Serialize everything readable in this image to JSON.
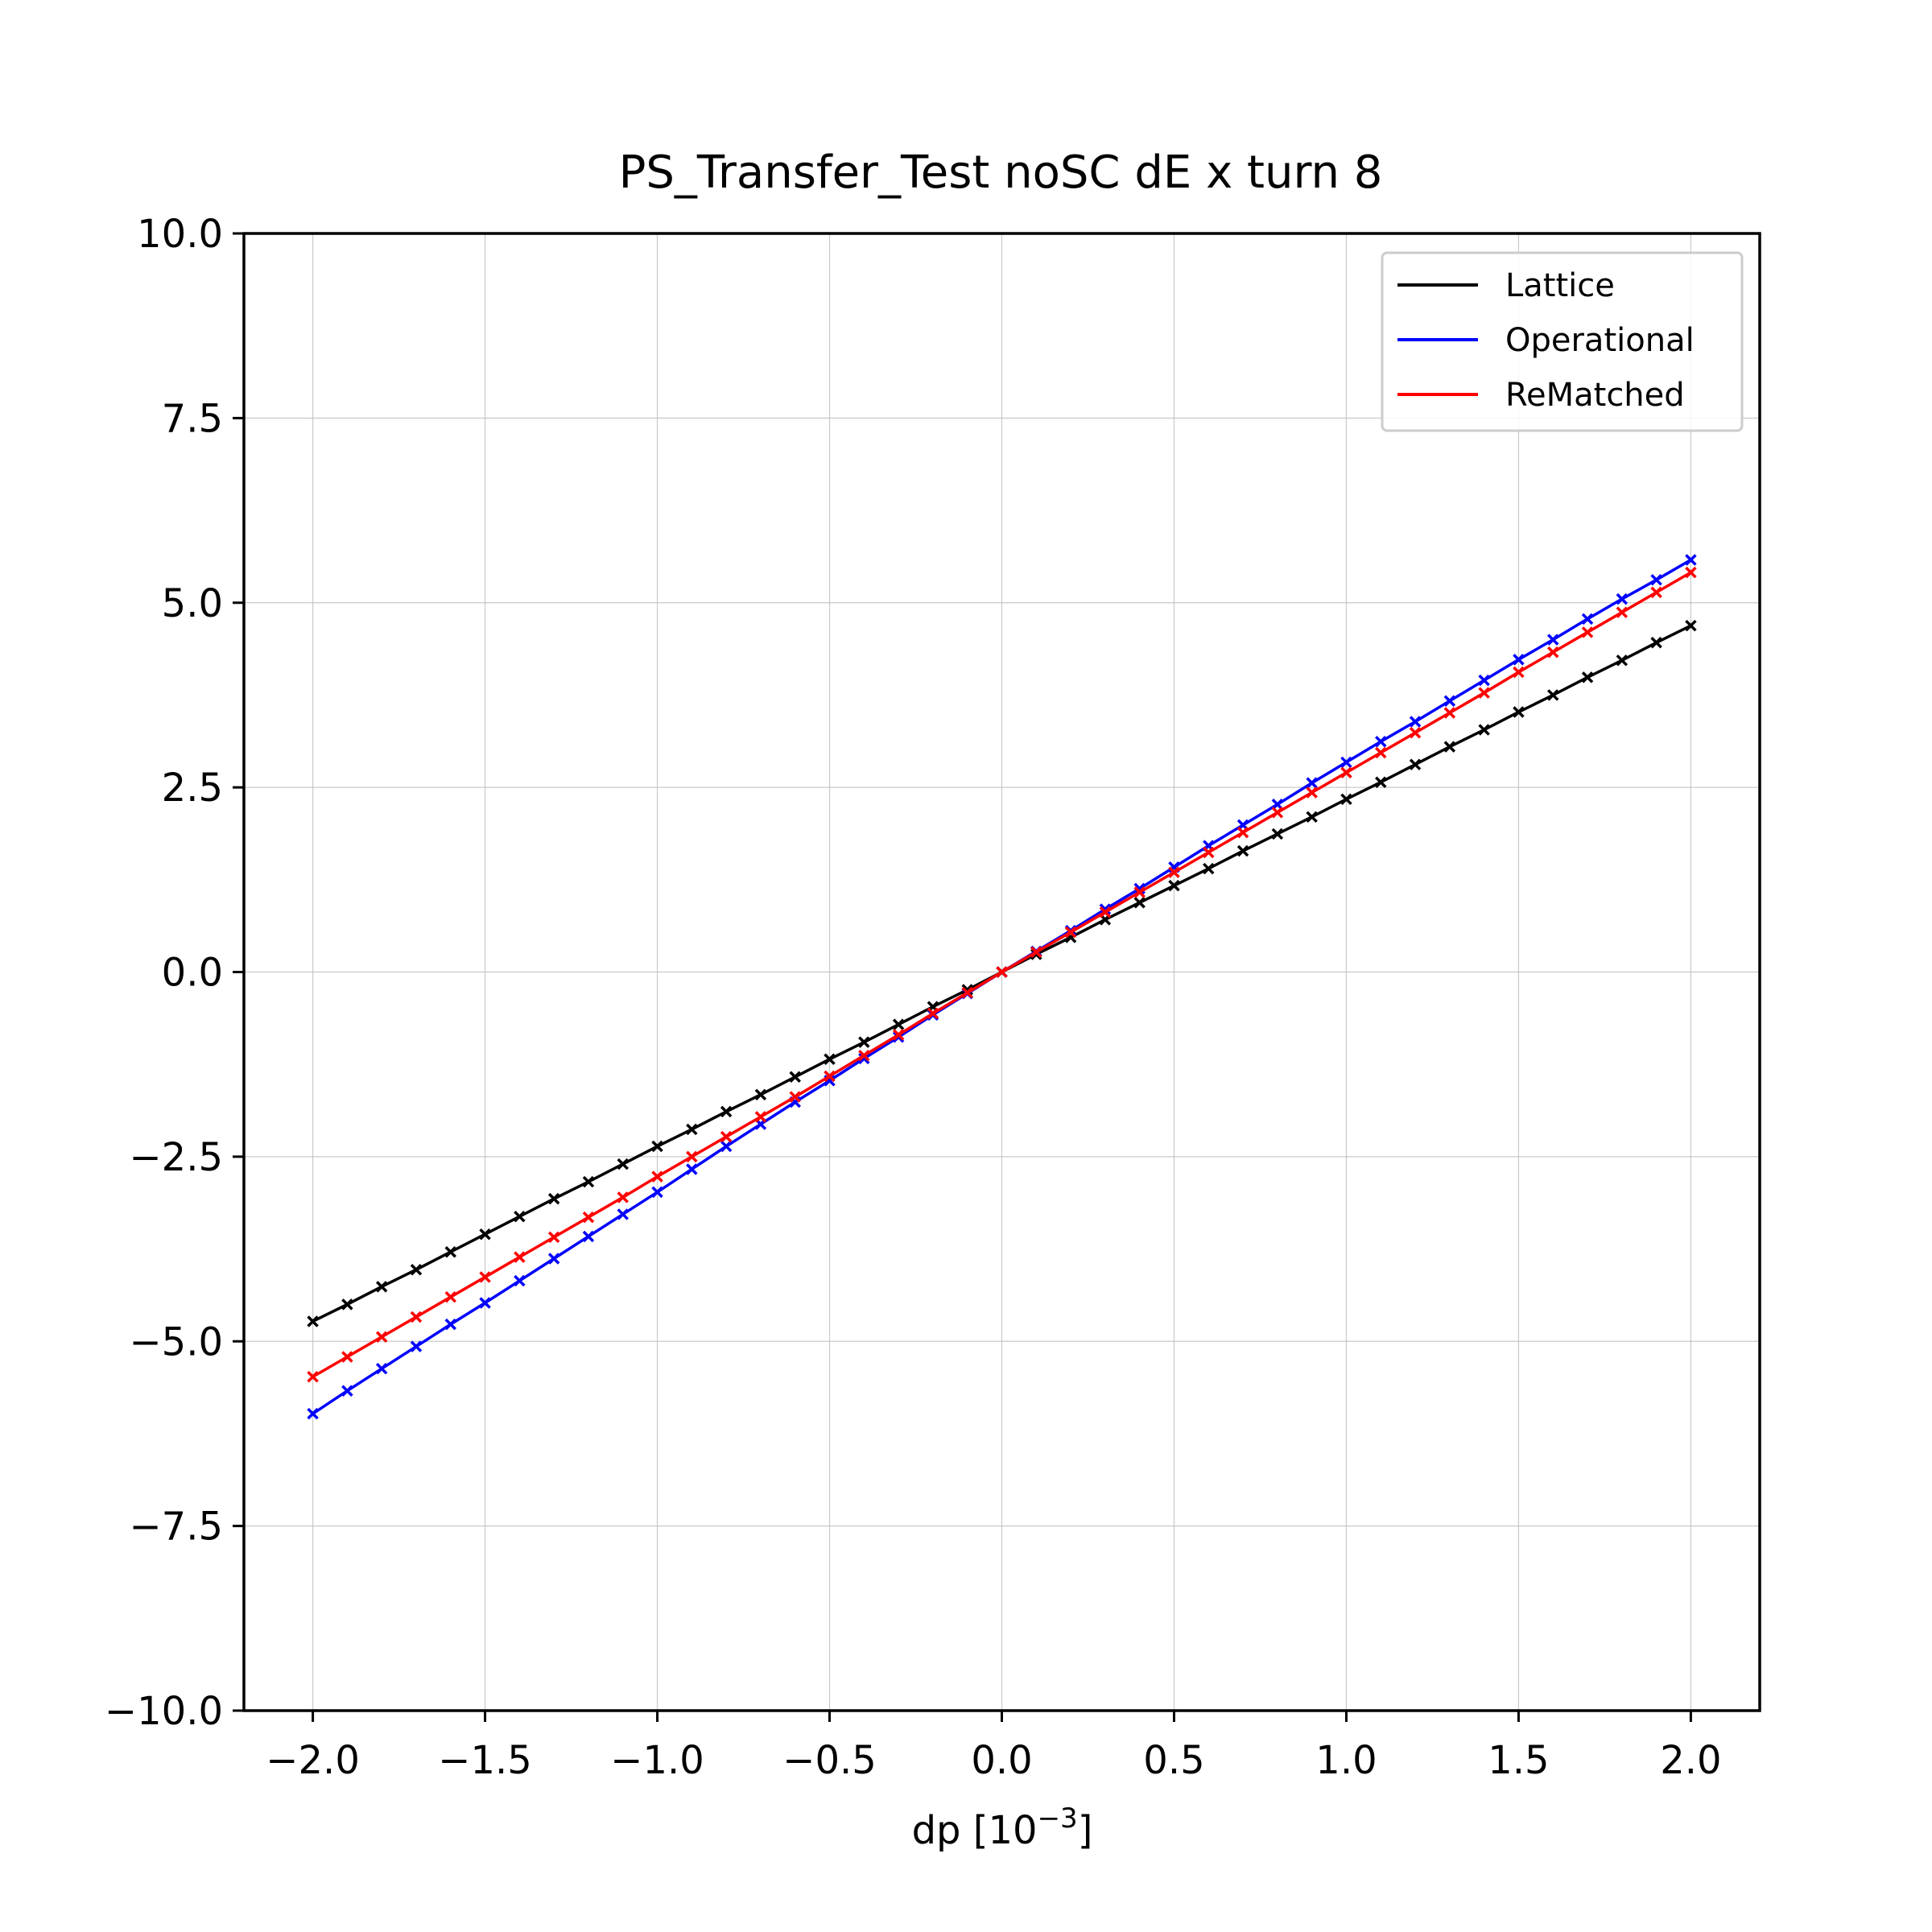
{
  "chart_data": {
    "type": "line",
    "title": "PS_Transfer_Test noSC dE x turn 8",
    "xlabel_base": "dp [10",
    "xlabel_exp": "−3",
    "xlabel_tail": "]",
    "ylabel": "",
    "xlim": [
      -2.2,
      2.2
    ],
    "ylim": [
      -10,
      10
    ],
    "xticks": [
      -2.0,
      -1.5,
      -1.0,
      -0.5,
      0.0,
      0.5,
      1.0,
      1.5,
      2.0
    ],
    "yticks": [
      -10.0,
      -7.5,
      -5.0,
      -2.5,
      0.0,
      2.5,
      5.0,
      7.5,
      10.0
    ],
    "xtick_labels": [
      "−2.0",
      "−1.5",
      "−1.0",
      "−0.5",
      "0.0",
      "0.5",
      "1.0",
      "1.5",
      "2.0"
    ],
    "ytick_labels": [
      "−10.0",
      "−7.5",
      "−5.0",
      "−2.5",
      "0.0",
      "2.5",
      "5.0",
      "7.5",
      "10.0"
    ],
    "grid": true,
    "legend_position": "top-right",
    "marker": "x",
    "x": [
      -2.0,
      -1.9,
      -1.8,
      -1.7,
      -1.6,
      -1.5,
      -1.4,
      -1.3,
      -1.2,
      -1.1,
      -1.0,
      -0.9,
      -0.8,
      -0.7,
      -0.6,
      -0.5,
      -0.4,
      -0.3,
      -0.2,
      -0.1,
      0.0,
      0.1,
      0.2,
      0.3,
      0.4,
      0.5,
      0.6,
      0.7,
      0.8,
      0.9,
      1.0,
      1.1,
      1.2,
      1.3,
      1.4,
      1.5,
      1.6,
      1.7,
      1.8,
      1.9,
      2.0
    ],
    "series": [
      {
        "name": "Lattice",
        "color": "#000000",
        "values": [
          -4.73,
          -4.5,
          -4.26,
          -4.03,
          -3.79,
          -3.55,
          -3.31,
          -3.07,
          -2.84,
          -2.6,
          -2.36,
          -2.13,
          -1.89,
          -1.66,
          -1.42,
          -1.18,
          -0.95,
          -0.71,
          -0.47,
          -0.24,
          0.0,
          0.24,
          0.47,
          0.71,
          0.94,
          1.17,
          1.4,
          1.64,
          1.87,
          2.1,
          2.34,
          2.57,
          2.81,
          3.05,
          3.28,
          3.52,
          3.75,
          3.99,
          4.22,
          4.46,
          4.69
        ]
      },
      {
        "name": "Operational",
        "color": "#0000ff",
        "values": [
          -5.98,
          -5.67,
          -5.37,
          -5.07,
          -4.77,
          -4.48,
          -4.18,
          -3.88,
          -3.58,
          -3.28,
          -2.98,
          -2.67,
          -2.36,
          -2.06,
          -1.76,
          -1.47,
          -1.17,
          -0.88,
          -0.58,
          -0.29,
          0.0,
          0.28,
          0.56,
          0.85,
          1.13,
          1.42,
          1.71,
          1.99,
          2.27,
          2.56,
          2.84,
          3.12,
          3.39,
          3.67,
          3.95,
          4.23,
          4.5,
          4.78,
          5.05,
          5.31,
          5.58
        ]
      },
      {
        "name": "ReMatched",
        "color": "#ff0000",
        "values": [
          -5.48,
          -5.21,
          -4.94,
          -4.67,
          -4.4,
          -4.13,
          -3.86,
          -3.59,
          -3.32,
          -3.05,
          -2.77,
          -2.5,
          -2.23,
          -1.96,
          -1.69,
          -1.41,
          -1.13,
          -0.85,
          -0.56,
          -0.28,
          0.0,
          0.27,
          0.54,
          0.81,
          1.08,
          1.35,
          1.62,
          1.89,
          2.16,
          2.43,
          2.7,
          2.97,
          3.24,
          3.51,
          3.78,
          4.06,
          4.33,
          4.6,
          4.87,
          5.14,
          5.41
        ]
      }
    ]
  }
}
